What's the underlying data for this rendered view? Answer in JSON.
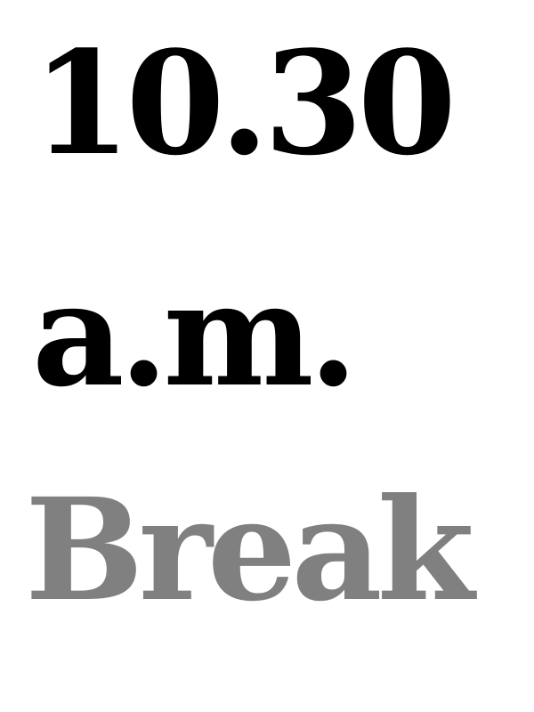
{
  "slot": {
    "time": "10.30",
    "meridiem": "a.m.",
    "title": "Break"
  },
  "colors": {
    "time": "#000000",
    "title": "#808080",
    "background": "#ffffff"
  }
}
